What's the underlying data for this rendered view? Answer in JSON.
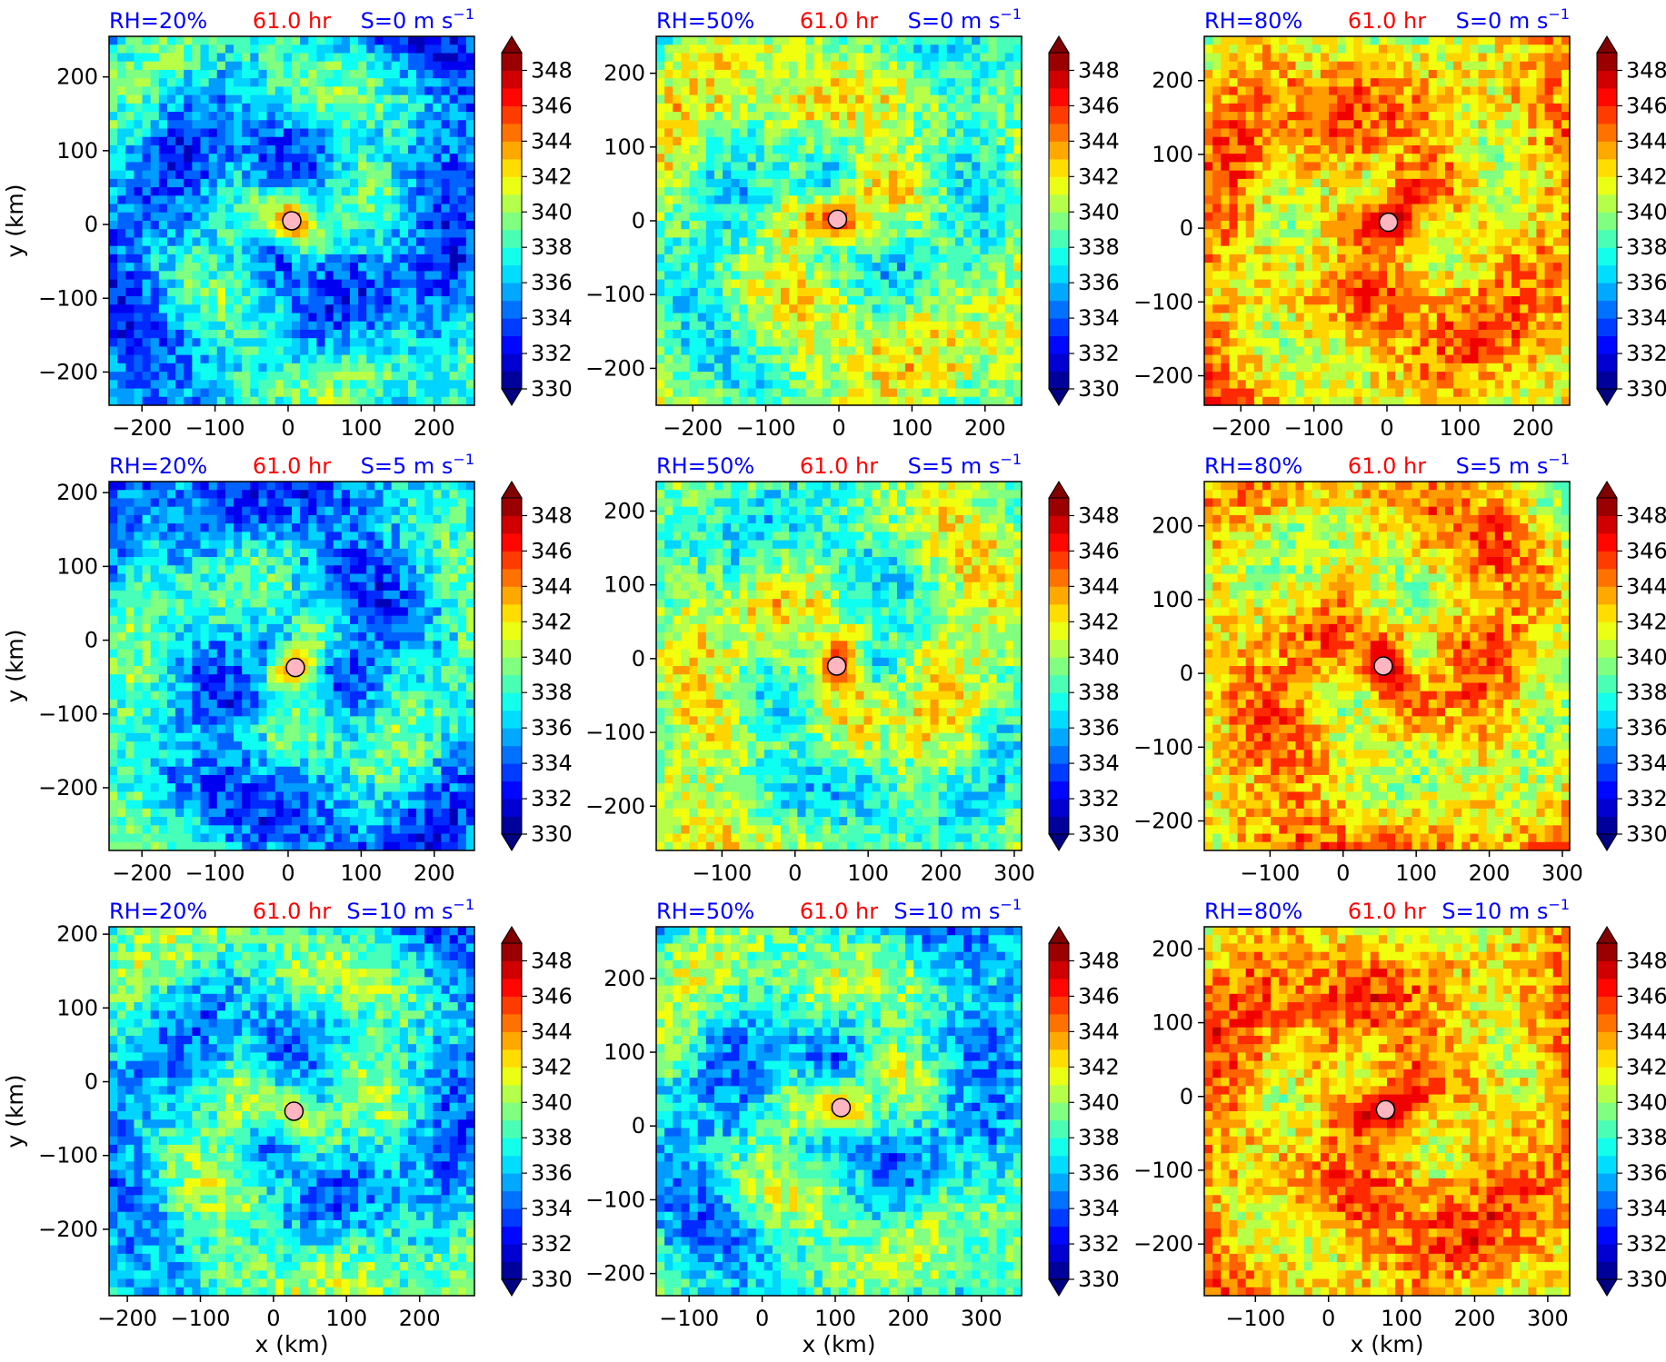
{
  "chart_data": {
    "type": "heatmap",
    "layout": {
      "rows": 3,
      "cols": 3
    },
    "colors": {
      "rh_label": "#0000ff",
      "time_label": "#ff0000",
      "shear_label": "#0000ff",
      "center_marker": "#ffb6c1"
    },
    "colorbar": {
      "levels": [
        330,
        331,
        332,
        333,
        334,
        335,
        336,
        337,
        338,
        339,
        340,
        341,
        342,
        343,
        344,
        345,
        346,
        347,
        348,
        349
      ],
      "tick_labels": [
        "330",
        "332",
        "334",
        "336",
        "338",
        "340",
        "342",
        "344",
        "346",
        "348"
      ],
      "tick_values": [
        330,
        332,
        334,
        336,
        338,
        340,
        342,
        344,
        346,
        348
      ],
      "extend": "both",
      "colormap": "jet"
    },
    "ylabel": "y (km)",
    "xlabel": "x (km)",
    "panels": [
      {
        "rh": "RH=20%",
        "time": "61.0 hr",
        "shear": "S=0 m s",
        "shear_exp": "−1",
        "xlim": [
          -245,
          255
        ],
        "ylim": [
          -245,
          255
        ],
        "xticks": [
          -200,
          -100,
          0,
          100,
          200
        ],
        "xtick_labels": [
          "−200",
          "−100",
          "0",
          "100",
          "200"
        ],
        "yticks": [
          -200,
          -100,
          0,
          100,
          200
        ],
        "ytick_labels": [
          "−200",
          "−100",
          "0",
          "100",
          "200"
        ],
        "center": [
          5,
          5
        ],
        "mean_level": 0.32,
        "core_level": 0.82,
        "spread": 0.55
      },
      {
        "rh": "RH=50%",
        "time": "61.0 hr",
        "shear": "S=0 m s",
        "shear_exp": "−1",
        "xlim": [
          -250,
          250
        ],
        "ylim": [
          -250,
          250
        ],
        "xticks": [
          -200,
          -100,
          0,
          100,
          200
        ],
        "xtick_labels": [
          "−200",
          "−100",
          "0",
          "100",
          "200"
        ],
        "yticks": [
          -200,
          -100,
          0,
          100,
          200
        ],
        "ytick_labels": [
          "−200",
          "−100",
          "0",
          "100",
          "200"
        ],
        "center": [
          -2,
          2
        ],
        "mean_level": 0.5,
        "core_level": 0.85,
        "spread": 0.5
      },
      {
        "rh": "RH=80%",
        "time": "61.0 hr",
        "shear": "S=0 m s",
        "shear_exp": "−1",
        "xlim": [
          -250,
          250
        ],
        "ylim": [
          -240,
          260
        ],
        "xticks": [
          -200,
          -100,
          0,
          100,
          200
        ],
        "xtick_labels": [
          "−200",
          "−100",
          "0",
          "100",
          "200"
        ],
        "yticks": [
          -200,
          -100,
          0,
          100,
          200
        ],
        "ytick_labels": [
          "−200",
          "−100",
          "0",
          "100",
          "200"
        ],
        "center": [
          2,
          8
        ],
        "mean_level": 0.68,
        "core_level": 0.97,
        "spread": 0.4
      },
      {
        "rh": "RH=20%",
        "time": "61.0 hr",
        "shear": "S=5 m s",
        "shear_exp": "−1",
        "xlim": [
          -245,
          255
        ],
        "ylim": [
          -285,
          215
        ],
        "xticks": [
          -200,
          -100,
          0,
          100,
          200
        ],
        "xtick_labels": [
          "−200",
          "−100",
          "0",
          "100",
          "200"
        ],
        "yticks": [
          -200,
          -100,
          0,
          100,
          200
        ],
        "ytick_labels": [
          "−200",
          "−100",
          "0",
          "100",
          "200"
        ],
        "center": [
          10,
          -37
        ],
        "mean_level": 0.33,
        "core_level": 0.75,
        "spread": 0.55
      },
      {
        "rh": "RH=50%",
        "time": "61.0 hr",
        "shear": "S=5 m s",
        "shear_exp": "−1",
        "xlim": [
          -190,
          310
        ],
        "ylim": [
          -260,
          240
        ],
        "xticks": [
          -100,
          0,
          100,
          200,
          300
        ],
        "xtick_labels": [
          "−100",
          "0",
          "100",
          "200",
          "300"
        ],
        "yticks": [
          -200,
          -100,
          0,
          100,
          200
        ],
        "ytick_labels": [
          "−200",
          "−100",
          "0",
          "100",
          "200"
        ],
        "center": [
          57,
          -10
        ],
        "mean_level": 0.5,
        "core_level": 0.85,
        "spread": 0.5
      },
      {
        "rh": "RH=80%",
        "time": "61.0 hr",
        "shear": "S=5 m s",
        "shear_exp": "−1",
        "xlim": [
          -190,
          310
        ],
        "ylim": [
          -240,
          260
        ],
        "xticks": [
          -100,
          0,
          100,
          200,
          300
        ],
        "xtick_labels": [
          "−100",
          "0",
          "100",
          "200",
          "300"
        ],
        "yticks": [
          -200,
          -100,
          0,
          100,
          200
        ],
        "ytick_labels": [
          "−200",
          "−100",
          "0",
          "100",
          "200"
        ],
        "center": [
          55,
          10
        ],
        "mean_level": 0.66,
        "core_level": 0.97,
        "spread": 0.45
      },
      {
        "rh": "RH=20%",
        "time": "61.0 hr",
        "shear": "S=10 m s",
        "shear_exp": "−1",
        "xlim": [
          -225,
          275
        ],
        "ylim": [
          -290,
          210
        ],
        "xticks": [
          -200,
          -100,
          0,
          100,
          200
        ],
        "xtick_labels": [
          "−200",
          "−100",
          "0",
          "100",
          "200"
        ],
        "yticks": [
          -200,
          -100,
          0,
          100,
          200
        ],
        "ytick_labels": [
          "−200",
          "−100",
          "0",
          "100",
          "200"
        ],
        "center": [
          28,
          -40
        ],
        "mean_level": 0.38,
        "core_level": 0.6,
        "spread": 0.55
      },
      {
        "rh": "RH=50%",
        "time": "61.0 hr",
        "shear": "S=10 m s",
        "shear_exp": "−1",
        "xlim": [
          -145,
          355
        ],
        "ylim": [
          -230,
          270
        ],
        "xticks": [
          -100,
          0,
          100,
          200,
          300
        ],
        "xtick_labels": [
          "−100",
          "0",
          "100",
          "200",
          "300"
        ],
        "yticks": [
          -200,
          -100,
          0,
          100,
          200
        ],
        "ytick_labels": [
          "−200",
          "−100",
          "0",
          "100",
          "200"
        ],
        "center": [
          108,
          25
        ],
        "mean_level": 0.4,
        "core_level": 0.72,
        "spread": 0.55
      },
      {
        "rh": "RH=80%",
        "time": "61.0 hr",
        "shear": "S=10 m s",
        "shear_exp": "−1",
        "xlim": [
          -170,
          330
        ],
        "ylim": [
          -270,
          230
        ],
        "xticks": [
          -100,
          0,
          100,
          200,
          300
        ],
        "xtick_labels": [
          "−100",
          "0",
          "100",
          "200",
          "300"
        ],
        "yticks": [
          -200,
          -100,
          0,
          100,
          200
        ],
        "ytick_labels": [
          "−200",
          "−100",
          "0",
          "100",
          "200"
        ],
        "center": [
          78,
          -18
        ],
        "mean_level": 0.7,
        "core_level": 0.97,
        "spread": 0.4
      }
    ]
  }
}
